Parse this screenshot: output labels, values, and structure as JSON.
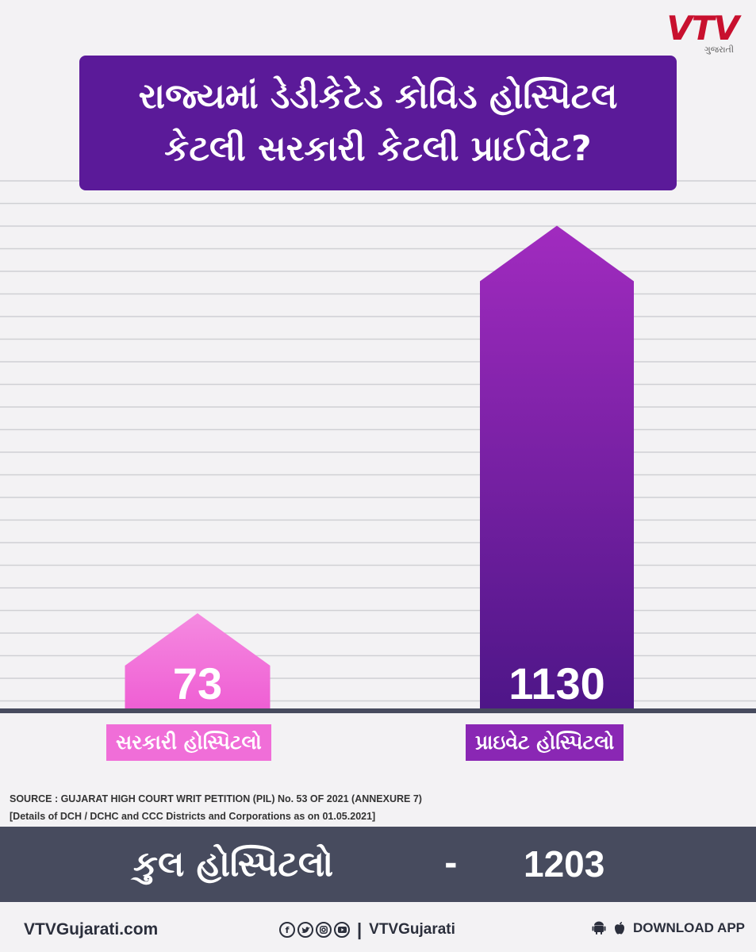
{
  "logo": {
    "brand": "VTV",
    "sub": "ગુજરાતી"
  },
  "title": {
    "line1": "રાજ્યમાં ડેડીકેટેડ કોવિડ હોસ્પિટલ",
    "line2": "કેટલી સરકારી કેટલી પ્રાઈવેટ?"
  },
  "colors": {
    "brand_red": "#c8102e",
    "title_bg": "#5b1a99",
    "gov_bar": "#f06ed8",
    "private_bar": "#6a1e9e",
    "total_bg": "#474b5e"
  },
  "chart_data": {
    "type": "bar",
    "categories": [
      "સરકારી હોસ્પિટલો",
      "પ્રાઇવેટ  હોસ્પિટલો"
    ],
    "values": [
      73,
      1130
    ],
    "ylim": [
      0,
      1300
    ],
    "grid": true,
    "bar_shape": "arrow-up"
  },
  "source": {
    "line1": "SOURCE : GUJARAT HIGH COURT WRIT PETITION (PIL) No. 53 OF 2021 (ANNEXURE 7)",
    "line2": "[Details of DCH / DCHC and CCC Districts and Corporations as on 01.05.2021]"
  },
  "total": {
    "label": "કુલ હોસ્પિટલો",
    "dash": "-",
    "value": "1203"
  },
  "footer": {
    "website": "VTVGujarati.com",
    "social_handle": "VTVGujarati",
    "social_icons": [
      "facebook-icon",
      "twitter-icon",
      "instagram-icon",
      "youtube-icon"
    ],
    "download_label": "DOWNLOAD APP"
  }
}
